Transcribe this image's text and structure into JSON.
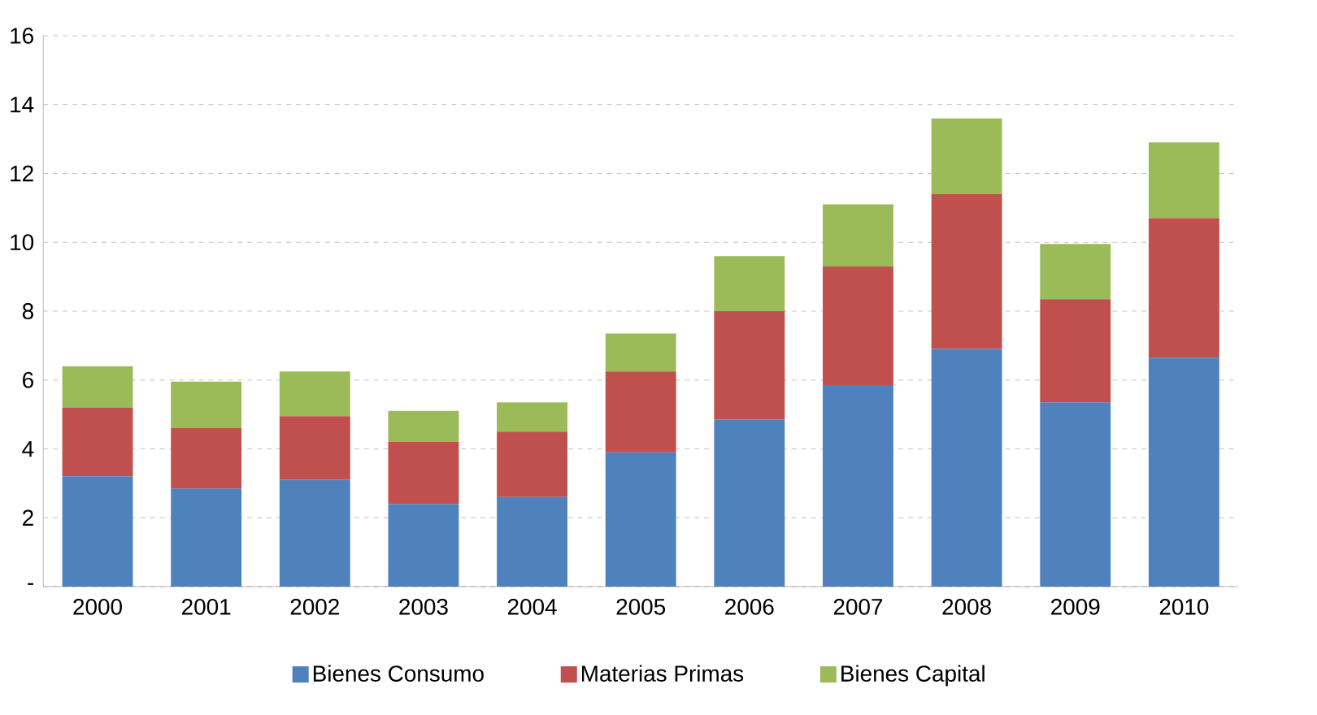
{
  "chart_data": {
    "type": "bar",
    "stacked": true,
    "categories": [
      "2000",
      "2001",
      "2002",
      "2003",
      "2004",
      "2005",
      "2006",
      "2007",
      "2008",
      "2009",
      "2010"
    ],
    "series": [
      {
        "name": "Bienes Consumo",
        "color": "#4f81bd",
        "values": [
          3.2,
          2.85,
          3.1,
          2.4,
          2.6,
          3.9,
          4.85,
          5.85,
          6.9,
          5.35,
          6.65
        ]
      },
      {
        "name": "Materias Primas",
        "color": "#c0504d",
        "values": [
          2.0,
          1.75,
          1.85,
          1.8,
          1.9,
          2.35,
          3.15,
          3.45,
          4.5,
          3.0,
          4.05
        ]
      },
      {
        "name": "Bienes Capital",
        "color": "#9bbb59",
        "values": [
          1.2,
          1.35,
          1.3,
          0.9,
          0.85,
          1.1,
          1.6,
          1.8,
          2.2,
          1.6,
          2.2
        ]
      }
    ],
    "ylim": [
      0,
      16
    ],
    "yticks": [
      {
        "value": 0,
        "label": "-"
      },
      2,
      4,
      6,
      8,
      10,
      12,
      14,
      16
    ],
    "grid": "y",
    "legend": "bottom"
  }
}
